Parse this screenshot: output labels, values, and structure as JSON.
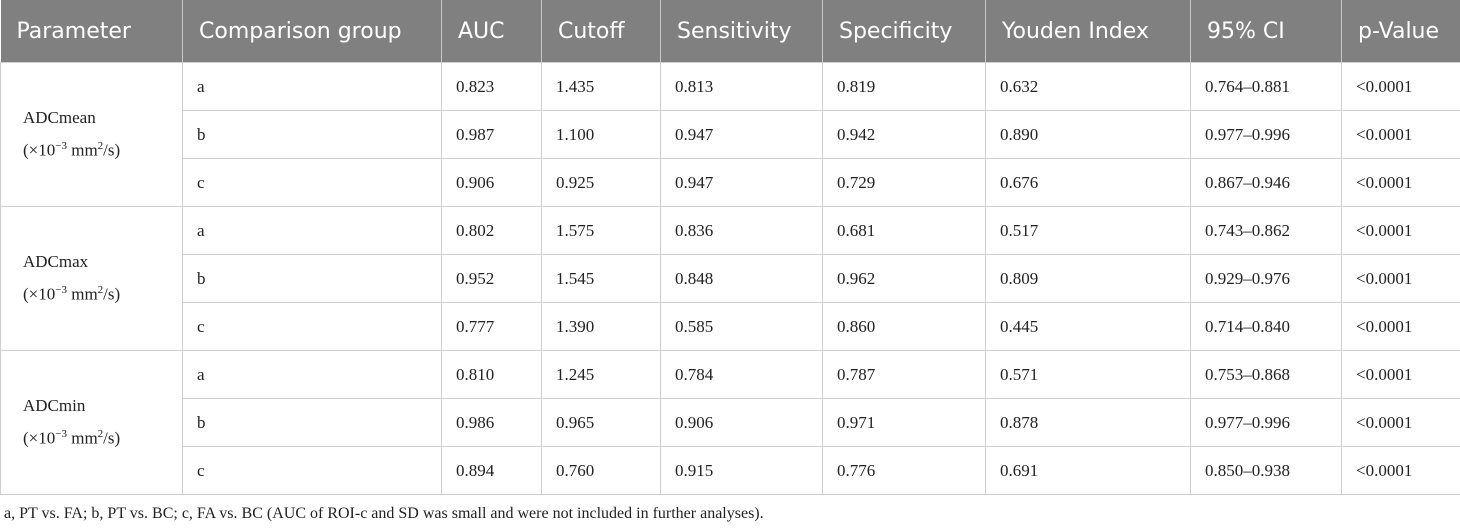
{
  "table": {
    "columns": [
      "Parameter",
      "Comparison group",
      "AUC",
      "Cutoff",
      "Sensitivity",
      "Specificity",
      "Youden Index",
      "95% CI",
      "p-Value"
    ],
    "groups": [
      {
        "name": "ADCmean",
        "unit": {
          "open": "(×10",
          "exp": "−3",
          "mid": " mm",
          "sq": "2",
          "close": "/s)"
        },
        "rows": [
          [
            "a",
            "0.823",
            "1.435",
            "0.813",
            "0.819",
            "0.632",
            "0.764–0.881",
            "<0.0001"
          ],
          [
            "b",
            "0.987",
            "1.100",
            "0.947",
            "0.942",
            "0.890",
            "0.977–0.996",
            "<0.0001"
          ],
          [
            "c",
            "0.906",
            "0.925",
            "0.947",
            "0.729",
            "0.676",
            "0.867–0.946",
            "<0.0001"
          ]
        ]
      },
      {
        "name": "ADCmax",
        "unit": {
          "open": "(×10",
          "exp": "−3",
          "mid": " mm",
          "sq": "2",
          "close": "/s)"
        },
        "rows": [
          [
            "a",
            "0.802",
            "1.575",
            "0.836",
            "0.681",
            "0.517",
            "0.743–0.862",
            "<0.0001"
          ],
          [
            "b",
            "0.952",
            "1.545",
            "0.848",
            "0.962",
            "0.809",
            "0.929–0.976",
            "<0.0001"
          ],
          [
            "c",
            "0.777",
            "1.390",
            "0.585",
            "0.860",
            "0.445",
            "0.714–0.840",
            "<0.0001"
          ]
        ]
      },
      {
        "name": "ADCmin",
        "unit": {
          "open": "(×10",
          "exp": "−3",
          "mid": " mm",
          "sq": "2",
          "close": "/s)"
        },
        "rows": [
          [
            "a",
            "0.810",
            "1.245",
            "0.784",
            "0.787",
            "0.571",
            "0.753–0.868",
            "<0.0001"
          ],
          [
            "b",
            "0.986",
            "0.965",
            "0.906",
            "0.971",
            "0.878",
            "0.977–0.996",
            "<0.0001"
          ],
          [
            "c",
            "0.894",
            "0.760",
            "0.915",
            "0.776",
            "0.691",
            "0.850–0.938",
            "<0.0001"
          ]
        ]
      }
    ]
  },
  "footnote": "a, PT vs. FA; b, PT vs. BC; c, FA vs. BC (AUC of ROI-c and SD was small and were not included in further analyses)."
}
